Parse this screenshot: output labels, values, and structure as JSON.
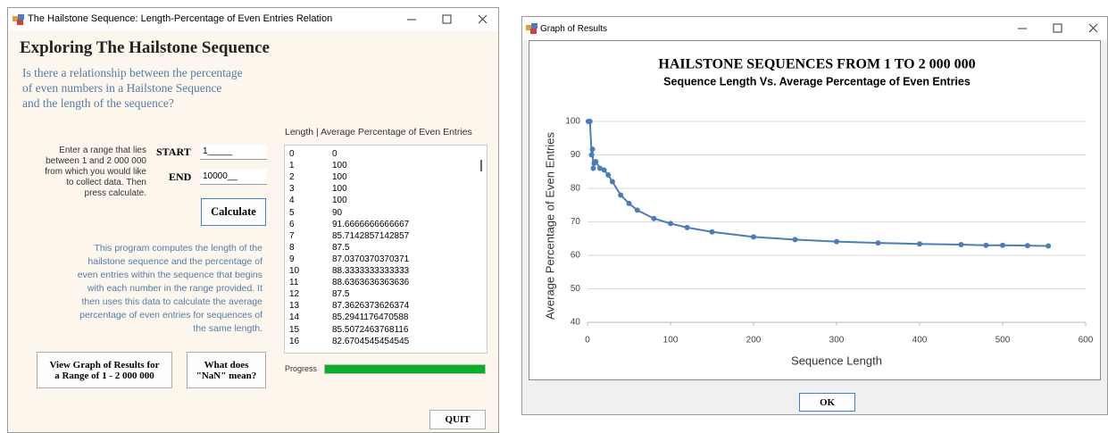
{
  "left_window": {
    "title": "The Hailstone Sequence: Length-Percentage of Even Entries Relation",
    "heading": "Exploring The Hailstone Sequence",
    "question": [
      "Is there a relationship between the percentage",
      "of even numbers in a Hailstone Sequence",
      "and the length of the sequence?"
    ],
    "instructions": [
      "Enter a range that lies",
      "between 1 and 2 000 000",
      "from which you would like",
      "to collect data. Then",
      "press calculate."
    ],
    "start_label": "START",
    "start_value": "1_____",
    "end_label": "END",
    "end_value": "10000__",
    "calculate": "Calculate",
    "description": [
      "This program computes the length of the",
      "hailstone sequence and the percentage of",
      "even entries within the sequence that begins",
      "with each number in the range provided. It",
      "then uses this data to calculate the average",
      "percentage of even entries for sequences of",
      "the same length."
    ],
    "graph_button": [
      "View Graph of Results for",
      "a Range of 1 - 2 000 000"
    ],
    "nan_button": [
      "What does",
      "\"NaN\" mean?"
    ],
    "list_header": "Length  |  Average Percentage of Even Entries",
    "rows": [
      [
        "0",
        "0"
      ],
      [
        "1",
        "100"
      ],
      [
        "2",
        "100"
      ],
      [
        "3",
        "100"
      ],
      [
        "4",
        "100"
      ],
      [
        "5",
        "90"
      ],
      [
        "6",
        "91.6666666666667"
      ],
      [
        "7",
        "85.7142857142857"
      ],
      [
        "8",
        "87.5"
      ],
      [
        "9",
        "87.0370370370371"
      ],
      [
        "10",
        "88.3333333333333"
      ],
      [
        "11",
        "88.6363636363636"
      ],
      [
        "12",
        "87.5"
      ],
      [
        "13",
        "87.3626373626374"
      ],
      [
        "14",
        "85.2941176470588"
      ],
      [
        "15",
        "85.5072463768116"
      ],
      [
        "16",
        "82.6704545454545"
      ]
    ],
    "progress_label": "Progress",
    "progress": 100,
    "quit": "QUIT"
  },
  "right_window": {
    "title": "Graph of Results",
    "ok": "OK"
  },
  "chart_data": {
    "type": "line",
    "title": "HAILSTONE SEQUENCES FROM 1 TO 2 000 000",
    "subtitle": "Sequence Length Vs. Average Percentage of Even Entries",
    "x_label": "Sequence Length",
    "y_label": "Average Percentage of Even Entries",
    "x": [
      1,
      3,
      5,
      6,
      7,
      8,
      10,
      15,
      20,
      25,
      30,
      40,
      50,
      60,
      80,
      100,
      120,
      150,
      200,
      250,
      300,
      350,
      400,
      450,
      480,
      500,
      530,
      555
    ],
    "values": [
      100,
      100,
      90,
      91.7,
      86,
      87.5,
      88,
      86,
      85.5,
      84,
      82,
      78,
      75.5,
      73.5,
      71,
      69.5,
      68.3,
      67,
      65.5,
      64.7,
      64.1,
      63.7,
      63.4,
      63.2,
      63,
      63,
      62.9,
      62.8
    ],
    "color": "#4a7dbf",
    "xlim": [
      0,
      600
    ],
    "xticks": [
      0,
      100,
      200,
      300,
      400,
      500,
      600
    ],
    "ylim": [
      40,
      100
    ],
    "yticks": [
      40,
      50,
      60,
      70,
      80,
      90,
      100
    ],
    "grid": true
  }
}
